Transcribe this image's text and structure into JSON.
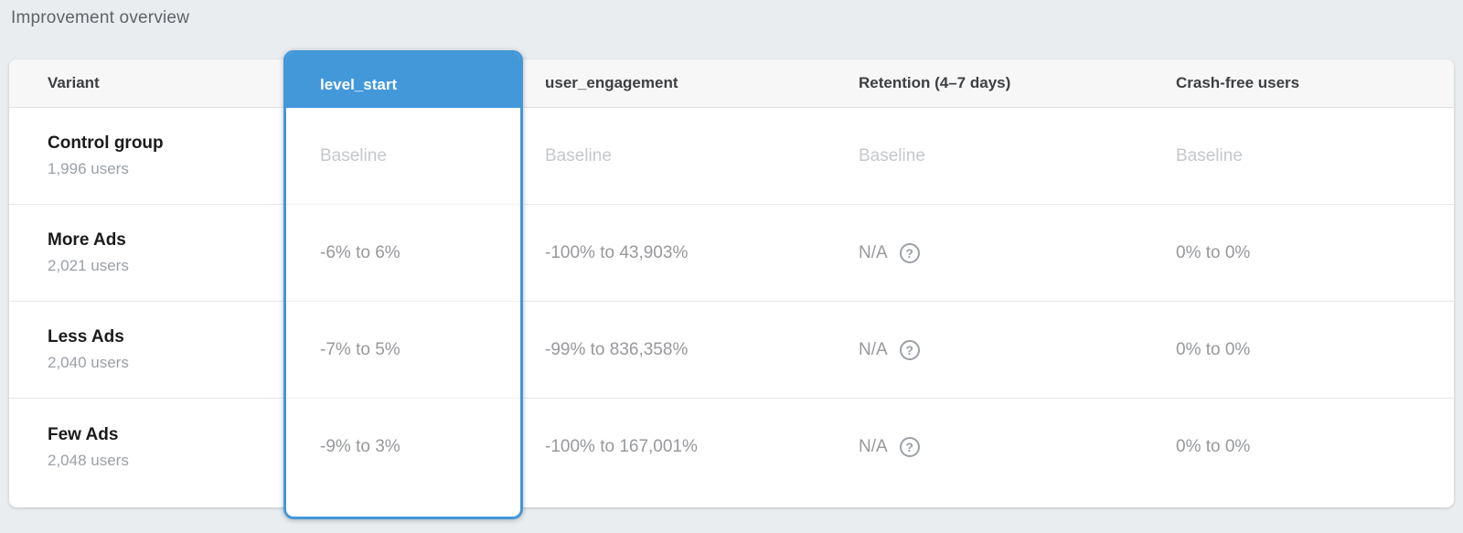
{
  "page": {
    "title": "Improvement overview"
  },
  "table": {
    "columns": [
      {
        "id": "variant",
        "label": "Variant",
        "selected": false
      },
      {
        "id": "level_start",
        "label": "level_start",
        "selected": true
      },
      {
        "id": "user_engagement",
        "label": "user_engagement",
        "selected": false
      },
      {
        "id": "retention",
        "label": "Retention (4–7 days)",
        "selected": false
      },
      {
        "id": "crash_free",
        "label": "Crash-free users",
        "selected": false
      }
    ],
    "rows": [
      {
        "variant": "Control group",
        "users": "1,996 users",
        "level_start": "Baseline",
        "user_engagement": "Baseline",
        "retention": "Baseline",
        "retention_has_help": false,
        "crash_free": "Baseline",
        "is_baseline": true
      },
      {
        "variant": "More Ads",
        "users": "2,021 users",
        "level_start": "-6% to 6%",
        "user_engagement": "-100% to 43,903%",
        "retention": "N/A",
        "retention_has_help": true,
        "crash_free": "0% to 0%",
        "is_baseline": false
      },
      {
        "variant": "Less Ads",
        "users": "2,040 users",
        "level_start": "-7% to 5%",
        "user_engagement": "-99% to 836,358%",
        "retention": "N/A",
        "retention_has_help": true,
        "crash_free": "0% to 0%",
        "is_baseline": false
      },
      {
        "variant": "Few Ads",
        "users": "2,048 users",
        "level_start": "-9% to 3%",
        "user_engagement": "-100% to 167,001%",
        "retention": "N/A",
        "retention_has_help": true,
        "crash_free": "0% to 0%",
        "is_baseline": false
      }
    ],
    "icons": {
      "help": "?"
    },
    "colors": {
      "selected_column": "#4398da",
      "page_background": "#eaedf0",
      "header_background": "#f7f7f7",
      "value_text": "#96989b",
      "baseline_text": "#c5c8cb"
    }
  }
}
